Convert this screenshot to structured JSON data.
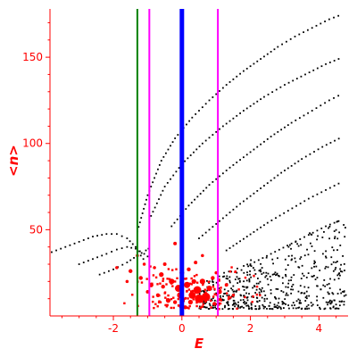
{
  "chart_data": {
    "type": "scatter",
    "title": "",
    "xlabel": "E",
    "ylabel": "<n>",
    "xlim": [
      -3.85,
      4.85
    ],
    "ylim": [
      0,
      178
    ],
    "grid": false,
    "colors": {
      "axes": "#ff0000",
      "black_points": "#000000",
      "red_points": "#ff0000",
      "green_line": "#008000",
      "blue_line": "#0000ff",
      "magenta_line": "#ff00ff"
    },
    "x_ticks": [
      {
        "value": -2,
        "label": "-2"
      },
      {
        "value": 0,
        "label": "0"
      },
      {
        "value": 2,
        "label": "2"
      },
      {
        "value": 4,
        "label": "4"
      }
    ],
    "y_ticks": [
      {
        "value": 50,
        "label": "50"
      },
      {
        "value": 100,
        "label": "100"
      },
      {
        "value": 150,
        "label": "150"
      }
    ],
    "vertical_lines": [
      {
        "x": -1.3,
        "color": "#008000",
        "style": "thin"
      },
      {
        "x": -0.95,
        "color": "#ff00ff",
        "style": "thin"
      },
      {
        "x": 0.0,
        "color": "#0000ff",
        "style": "thick"
      },
      {
        "x": 1.05,
        "color": "#ff00ff",
        "style": "thin"
      }
    ],
    "curve_series": [
      {
        "points": [
          [
            -3.8,
            37
          ],
          [
            -3.4,
            40
          ],
          [
            -3.0,
            43
          ],
          [
            -2.6,
            46
          ],
          [
            -2.2,
            47.5
          ],
          [
            -1.9,
            47.5
          ],
          [
            -1.6,
            45
          ],
          [
            -1.35,
            40
          ],
          [
            -1.2,
            35
          ],
          [
            -1.05,
            31
          ]
        ]
      },
      {
        "points": [
          [
            -3.0,
            30
          ],
          [
            -2.6,
            33
          ],
          [
            -2.2,
            36
          ],
          [
            -1.9,
            38.5
          ],
          [
            -1.6,
            40
          ],
          [
            -1.35,
            39
          ],
          [
            -1.1,
            36
          ],
          [
            -0.9,
            33
          ]
        ]
      },
      {
        "points": [
          [
            -2.4,
            24
          ],
          [
            -2.0,
            27
          ],
          [
            -1.6,
            31
          ],
          [
            -1.3,
            35
          ],
          [
            -1.05,
            38
          ],
          [
            -0.9,
            40
          ]
        ]
      },
      {
        "points": [
          [
            -1.3,
            49
          ],
          [
            -1.0,
            70
          ],
          [
            -0.6,
            90
          ],
          [
            -0.2,
            103
          ],
          [
            0.3,
            115
          ],
          [
            0.8,
            125
          ],
          [
            1.3,
            134
          ],
          [
            1.8,
            142
          ],
          [
            2.3,
            149
          ],
          [
            2.8,
            156
          ],
          [
            3.3,
            162
          ],
          [
            3.8,
            167
          ],
          [
            4.3,
            172
          ],
          [
            4.7,
            175
          ]
        ]
      },
      {
        "points": [
          [
            -0.9,
            58
          ],
          [
            -0.5,
            75
          ],
          [
            0.0,
            88
          ],
          [
            0.6,
            100
          ],
          [
            1.2,
            110
          ],
          [
            1.8,
            119
          ],
          [
            2.4,
            127
          ],
          [
            3.0,
            134
          ],
          [
            3.6,
            140
          ],
          [
            4.2,
            146
          ],
          [
            4.7,
            150
          ]
        ]
      },
      {
        "points": [
          [
            -0.3,
            52
          ],
          [
            0.2,
            64
          ],
          [
            0.8,
            76
          ],
          [
            1.4,
            86
          ],
          [
            2.0,
            95
          ],
          [
            2.6,
            104
          ],
          [
            3.2,
            112
          ],
          [
            3.8,
            119
          ],
          [
            4.3,
            125
          ],
          [
            4.7,
            129
          ]
        ]
      },
      {
        "points": [
          [
            0.5,
            45
          ],
          [
            1.1,
            55
          ],
          [
            1.7,
            65
          ],
          [
            2.3,
            74
          ],
          [
            2.9,
            83
          ],
          [
            3.5,
            91
          ],
          [
            4.1,
            98
          ],
          [
            4.7,
            104
          ]
        ]
      },
      {
        "points": [
          [
            1.3,
            38
          ],
          [
            1.9,
            46
          ],
          [
            2.5,
            54
          ],
          [
            3.1,
            61
          ],
          [
            3.7,
            68
          ],
          [
            4.2,
            73
          ],
          [
            4.7,
            78
          ]
        ]
      },
      {
        "points": [
          [
            2.0,
            30
          ],
          [
            2.6,
            36
          ],
          [
            3.2,
            42
          ],
          [
            3.7,
            47
          ],
          [
            4.2,
            52
          ],
          [
            4.7,
            56
          ]
        ]
      }
    ],
    "red_points": [
      {
        "x": 0.5,
        "y": 10,
        "s": 2.2
      },
      {
        "x": 0.45,
        "y": 15,
        "s": 2.0
      },
      {
        "x": 0.7,
        "y": 11,
        "s": 2.2
      },
      {
        "x": 0.3,
        "y": 12,
        "s": 1.8
      },
      {
        "x": 0.15,
        "y": 18,
        "s": 1.6
      },
      {
        "x": 0.6,
        "y": 20,
        "s": 1.4
      },
      {
        "x": -0.1,
        "y": 16,
        "s": 1.8
      },
      {
        "x": -0.3,
        "y": 20,
        "s": 1.4
      },
      {
        "x": -0.6,
        "y": 24,
        "s": 1.2
      },
      {
        "x": -0.9,
        "y": 18,
        "s": 1.2
      },
      {
        "x": -1.2,
        "y": 22,
        "s": 1.0
      },
      {
        "x": -1.5,
        "y": 26,
        "s": 1.0
      },
      {
        "x": 0.0,
        "y": 25,
        "s": 1.2
      },
      {
        "x": 0.2,
        "y": 27,
        "s": 1.0
      },
      {
        "x": 0.9,
        "y": 22,
        "s": 1.0
      },
      {
        "x": 1.1,
        "y": 14,
        "s": 1.2
      },
      {
        "x": 0.95,
        "y": 7,
        "s": 1.0
      },
      {
        "x": -0.4,
        "y": 9,
        "s": 1.2
      },
      {
        "x": -0.7,
        "y": 12,
        "s": 1.0
      },
      {
        "x": -1.0,
        "y": 14,
        "s": 0.9
      },
      {
        "x": -0.5,
        "y": 30,
        "s": 0.9
      },
      {
        "x": 0.4,
        "y": 31,
        "s": 0.9
      },
      {
        "x": 1.3,
        "y": 18,
        "s": 0.9
      },
      {
        "x": -1.6,
        "y": 20,
        "s": 0.8
      },
      {
        "x": -1.1,
        "y": 30,
        "s": 0.8
      },
      {
        "x": -0.2,
        "y": 8,
        "s": 1.0
      },
      {
        "x": 0.8,
        "y": 16,
        "s": 1.4
      },
      {
        "x": -0.8,
        "y": 28,
        "s": 0.8
      },
      {
        "x": 0.1,
        "y": 5,
        "s": 1.0
      },
      {
        "x": 1.5,
        "y": 12,
        "s": 0.8
      },
      {
        "x": -0.2,
        "y": 42,
        "s": 0.9
      },
      {
        "x": 0.6,
        "y": 35,
        "s": 0.8
      },
      {
        "x": -1.3,
        "y": 35,
        "s": 0.8
      },
      {
        "x": -1.9,
        "y": 28,
        "s": 0.8
      },
      {
        "x": 0.35,
        "y": 20,
        "s": 1.2
      },
      {
        "x": -0.05,
        "y": 12,
        "s": 1.6
      },
      {
        "x": 0.25,
        "y": 8,
        "s": 1.2
      },
      {
        "x": -0.55,
        "y": 17,
        "s": 1.0
      },
      {
        "x": 1.0,
        "y": 25,
        "s": 0.8
      }
    ]
  }
}
